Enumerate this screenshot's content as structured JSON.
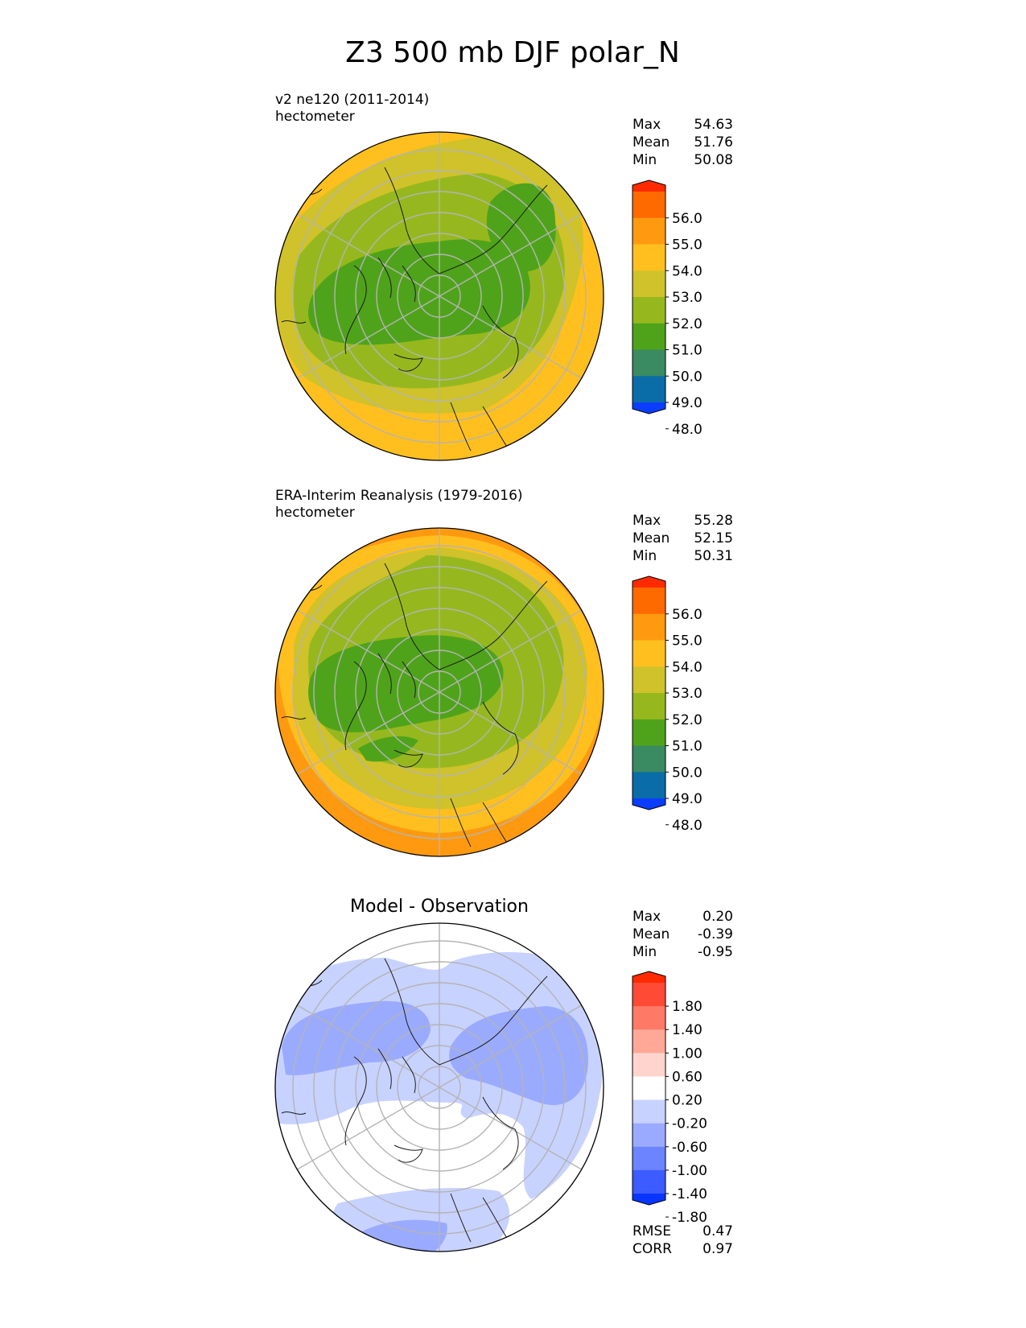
{
  "figure_title": "Z3 500 mb DJF polar_N",
  "chart_data": [
    {
      "type": "polar-contour-map",
      "projection": "north-polar-stereographic",
      "title_line1": "v2 ne120 (2011-2014)",
      "title_line2": "hectometer",
      "stats": [
        {
          "label": "Max",
          "value": "54.63"
        },
        {
          "label": "Mean",
          "value": "51.76"
        },
        {
          "label": "Min",
          "value": "50.08"
        }
      ],
      "colorbar": {
        "ticks": [
          "56.0",
          "55.0",
          "54.0",
          "53.0",
          "52.0",
          "51.0",
          "50.0",
          "49.0",
          "48.0"
        ],
        "colors_top_to_bottom": [
          "#ff2a00",
          "#ff6a00",
          "#ff9a10",
          "#ffc01f",
          "#cfc22a",
          "#96b81e",
          "#4fa31a",
          "#3a8a62",
          "#0a6da8",
          "#0a3dff"
        ],
        "extend": "both"
      }
    },
    {
      "type": "polar-contour-map",
      "projection": "north-polar-stereographic",
      "title_line1": "ERA-Interim Reanalysis (1979-2016)",
      "title_line2": "hectometer",
      "stats": [
        {
          "label": "Max",
          "value": "55.28"
        },
        {
          "label": "Mean",
          "value": "52.15"
        },
        {
          "label": "Min",
          "value": "50.31"
        }
      ],
      "colorbar": {
        "ticks": [
          "56.0",
          "55.0",
          "54.0",
          "53.0",
          "52.0",
          "51.0",
          "50.0",
          "49.0",
          "48.0"
        ],
        "colors_top_to_bottom": [
          "#ff2a00",
          "#ff6a00",
          "#ff9a10",
          "#ffc01f",
          "#cfc22a",
          "#96b81e",
          "#4fa31a",
          "#3a8a62",
          "#0a6da8",
          "#0a3dff"
        ],
        "extend": "both"
      }
    },
    {
      "type": "polar-contour-map",
      "projection": "north-polar-stereographic",
      "title_center": "Model - Observation",
      "stats": [
        {
          "label": "Max",
          "value": "0.20"
        },
        {
          "label": "Mean",
          "value": "-0.39"
        },
        {
          "label": "Min",
          "value": "-0.95"
        }
      ],
      "footer_stats": [
        {
          "label": "RMSE",
          "value": "0.47"
        },
        {
          "label": "CORR",
          "value": "0.97"
        }
      ],
      "colorbar": {
        "ticks": [
          "1.80",
          "1.40",
          "1.00",
          "0.60",
          "0.20",
          "-0.20",
          "-0.60",
          "-1.00",
          "-1.40",
          "-1.80"
        ],
        "colors_top_to_bottom": [
          "#ff2a00",
          "#ff4a36",
          "#ff7a66",
          "#ffa898",
          "#ffd4cc",
          "#ffffff",
          "#c8d2ff",
          "#9aabff",
          "#6c84ff",
          "#3c5cff",
          "#0a35ff"
        ],
        "extend": "both"
      }
    }
  ]
}
